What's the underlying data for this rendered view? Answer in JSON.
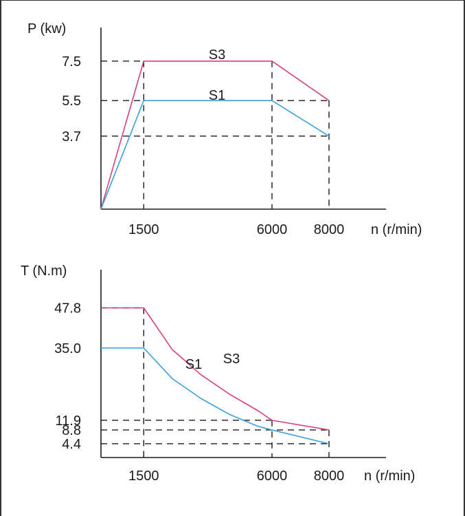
{
  "chart_data": [
    {
      "type": "line",
      "ylabel": "P (kw)",
      "xlabel": "n (r/min)",
      "x_ticks": [
        "1500",
        "6000",
        "8000"
      ],
      "y_ticks": [
        "7.5",
        "5.5",
        "3.7"
      ],
      "xlim": [
        0,
        10000
      ],
      "ylim": [
        0,
        9.2
      ],
      "grid": false,
      "colors": {
        "S3": "#d63f7e",
        "S1": "#3aa0dd"
      },
      "series": [
        {
          "name": "S3",
          "x": [
            0,
            1500,
            6000,
            8000
          ],
          "y": [
            0,
            7.5,
            7.5,
            5.5
          ]
        },
        {
          "name": "S1",
          "x": [
            0,
            1500,
            6000,
            8000
          ],
          "y": [
            0,
            5.5,
            5.5,
            3.7
          ]
        }
      ]
    },
    {
      "type": "line",
      "ylabel": "T (N.m)",
      "xlabel": "n (r/min)",
      "x_ticks": [
        "1500",
        "6000",
        "8000"
      ],
      "y_ticks": [
        "47.8",
        "35.0",
        "11.9",
        "8.8",
        "4.4"
      ],
      "xlim": [
        0,
        10000
      ],
      "ylim": [
        0,
        60
      ],
      "grid": false,
      "colors": {
        "S3": "#d63f7e",
        "S1": "#3aa0dd"
      },
      "series": [
        {
          "name": "S3",
          "x": [
            0,
            1500,
            2500,
            3500,
            4500,
            5500,
            6000,
            8000
          ],
          "y": [
            47.8,
            47.8,
            34.5,
            26.5,
            20.3,
            15.0,
            11.9,
            8.8
          ]
        },
        {
          "name": "S1",
          "x": [
            0,
            1500,
            2500,
            3500,
            4500,
            5500,
            6000,
            8000
          ],
          "y": [
            35.0,
            35.0,
            25.2,
            18.9,
            13.8,
            10.0,
            8.8,
            4.4
          ]
        }
      ]
    }
  ]
}
